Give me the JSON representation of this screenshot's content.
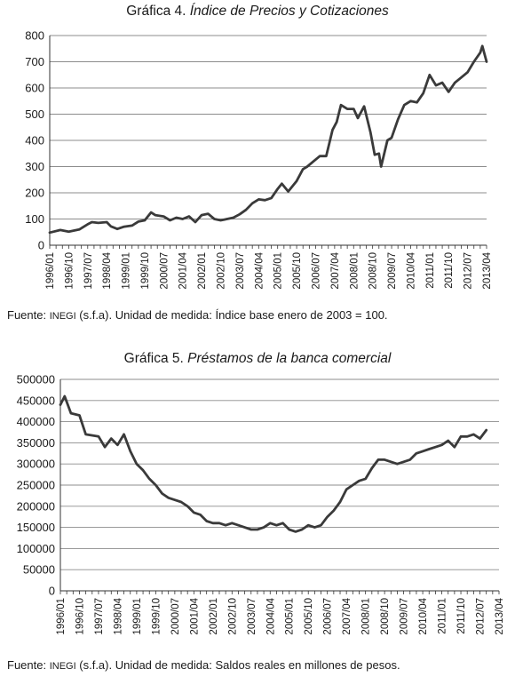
{
  "charts": [
    {
      "title_prefix": "Gráfica 4.",
      "title_italic": "Índice de Precios y Cotizaciones",
      "source_prefix": "Fuente: ",
      "source_org": "INEGI",
      "source_rest": " (s.f.a). Unidad de medida: Índice base enero de 2003 = 100."
    },
    {
      "title_prefix": "Gráfica 5.",
      "title_italic": "Préstamos de la banca comercial",
      "source_prefix": "Fuente: ",
      "source_org": "INEGI",
      "source_rest": " (s.f.a). Unidad de medida: Saldos reales en millones de pesos."
    }
  ],
  "chart_data": [
    {
      "type": "line",
      "title": "Gráfica 4. Índice de Precios y Cotizaciones",
      "xlabel": "",
      "ylabel": "",
      "ylim": [
        0,
        800
      ],
      "yticks": [
        0,
        100,
        200,
        300,
        400,
        500,
        600,
        700,
        800
      ],
      "ytick_labels": [
        "0",
        "100",
        "200",
        "300",
        "400",
        "500",
        "600",
        "700",
        "800"
      ],
      "grid": "horizontal",
      "legend": "none",
      "line_color": "#3a3a3a",
      "xlim": [
        "1996/01",
        "2013/04"
      ],
      "xtick_labels": [
        "1996/01",
        "1996/10",
        "1997/07",
        "1998/04",
        "1999/01",
        "1999/10",
        "2000/07",
        "2001/04",
        "2002/01",
        "2002/10",
        "2003/07",
        "2004/04",
        "2005/01",
        "2005/10",
        "2006/07",
        "2007/04",
        "2008/01",
        "2008/10",
        "2009/07",
        "2010/04",
        "2011/01",
        "2011/10",
        "2012/07",
        "2013/04"
      ],
      "series": [
        {
          "x": [
            "1996/01",
            "1996/06",
            "1996/10",
            "1997/03",
            "1997/07",
            "1997/09",
            "1997/12",
            "1998/04",
            "1998/06",
            "1998/09",
            "1998/12",
            "1999/04",
            "1999/07",
            "1999/10",
            "2000/01",
            "2000/03",
            "2000/07",
            "2000/10",
            "2001/01",
            "2001/04",
            "2001/07",
            "2001/10",
            "2002/01",
            "2002/04",
            "2002/07",
            "2002/10",
            "2003/01",
            "2003/04",
            "2003/07",
            "2003/10",
            "2004/01",
            "2004/04",
            "2004/07",
            "2004/10",
            "2005/01",
            "2005/03",
            "2005/06",
            "2005/10",
            "2006/01",
            "2006/03",
            "2006/06",
            "2006/09",
            "2006/12",
            "2007/03",
            "2007/05",
            "2007/07",
            "2007/10",
            "2008/01",
            "2008/03",
            "2008/06",
            "2008/09",
            "2008/11",
            "2009/01",
            "2009/02",
            "2009/05",
            "2009/07",
            "2009/10",
            "2010/01",
            "2010/04",
            "2010/07",
            "2010/10",
            "2011/01",
            "2011/04",
            "2011/07",
            "2011/10",
            "2012/01",
            "2012/04",
            "2012/07",
            "2012/10",
            "2013/01",
            "2013/02",
            "2013/04"
          ],
          "values": [
            48,
            58,
            52,
            60,
            80,
            88,
            85,
            88,
            72,
            62,
            70,
            75,
            90,
            95,
            125,
            115,
            110,
            95,
            105,
            100,
            110,
            88,
            115,
            120,
            100,
            95,
            100,
            105,
            118,
            135,
            160,
            175,
            172,
            180,
            215,
            235,
            205,
            245,
            290,
            300,
            320,
            340,
            340,
            440,
            470,
            535,
            520,
            520,
            485,
            530,
            430,
            345,
            350,
            300,
            400,
            410,
            480,
            535,
            550,
            545,
            580,
            650,
            610,
            620,
            585,
            620,
            640,
            660,
            700,
            735,
            760,
            700
          ]
        }
      ]
    },
    {
      "type": "line",
      "title": "Gráfica 5. Préstamos de la banca comercial",
      "xlabel": "",
      "ylabel": "",
      "ylim": [
        0,
        500000
      ],
      "yticks": [
        0,
        50000,
        100000,
        150000,
        200000,
        250000,
        300000,
        350000,
        400000,
        450000,
        500000
      ],
      "ytick_labels": [
        "0",
        "50000",
        "100000",
        "150000",
        "200000",
        "250000",
        "300000",
        "350000",
        "400000",
        "450000",
        "500000"
      ],
      "grid": "horizontal",
      "legend": "none",
      "line_color": "#3a3a3a",
      "xlim": [
        "1996/01",
        "2013/04"
      ],
      "xtick_labels": [
        "1996/01",
        "1996/10",
        "1997/07",
        "1998/04",
        "1999/01",
        "1999/10",
        "2000/07",
        "2001/04",
        "2002/01",
        "2002/10",
        "2003/07",
        "2004/04",
        "2005/01",
        "2005/10",
        "2006/07",
        "2007/04",
        "2008/01",
        "2008/10",
        "2009/07",
        "2010/04",
        "2011/01",
        "2011/10",
        "2012/07",
        "2013/04"
      ],
      "series": [
        {
          "x": [
            "1996/01",
            "1996/03",
            "1996/06",
            "1996/10",
            "1997/01",
            "1997/07",
            "1997/10",
            "1998/01",
            "1998/04",
            "1998/07",
            "1998/10",
            "1999/01",
            "1999/04",
            "1999/07",
            "1999/10",
            "2000/01",
            "2000/04",
            "2000/07",
            "2000/10",
            "2001/01",
            "2001/04",
            "2001/07",
            "2001/10",
            "2002/01",
            "2002/04",
            "2002/07",
            "2002/10",
            "2003/01",
            "2003/04",
            "2003/07",
            "2003/10",
            "2004/01",
            "2004/04",
            "2004/07",
            "2004/10",
            "2005/01",
            "2005/04",
            "2005/07",
            "2005/10",
            "2006/01",
            "2006/04",
            "2006/07",
            "2006/10",
            "2007/01",
            "2007/04",
            "2007/07",
            "2007/10",
            "2008/01",
            "2008/04",
            "2008/07",
            "2008/10",
            "2009/01",
            "2009/04",
            "2009/07",
            "2009/10",
            "2010/01",
            "2010/04",
            "2010/07",
            "2010/10",
            "2011/01",
            "2011/04",
            "2011/07",
            "2011/10",
            "2012/01",
            "2012/04",
            "2012/07",
            "2012/10"
          ],
          "values": [
            440000,
            460000,
            420000,
            415000,
            370000,
            365000,
            340000,
            360000,
            345000,
            370000,
            330000,
            300000,
            285000,
            265000,
            250000,
            230000,
            220000,
            215000,
            210000,
            200000,
            185000,
            180000,
            165000,
            160000,
            160000,
            155000,
            160000,
            155000,
            150000,
            145000,
            145000,
            150000,
            160000,
            155000,
            160000,
            145000,
            140000,
            145000,
            155000,
            150000,
            155000,
            175000,
            190000,
            210000,
            240000,
            250000,
            260000,
            265000,
            290000,
            310000,
            310000,
            305000,
            300000,
            305000,
            310000,
            325000,
            330000,
            335000,
            340000,
            345000,
            355000,
            340000,
            365000,
            365000,
            370000,
            360000,
            380000
          ]
        }
      ]
    }
  ]
}
